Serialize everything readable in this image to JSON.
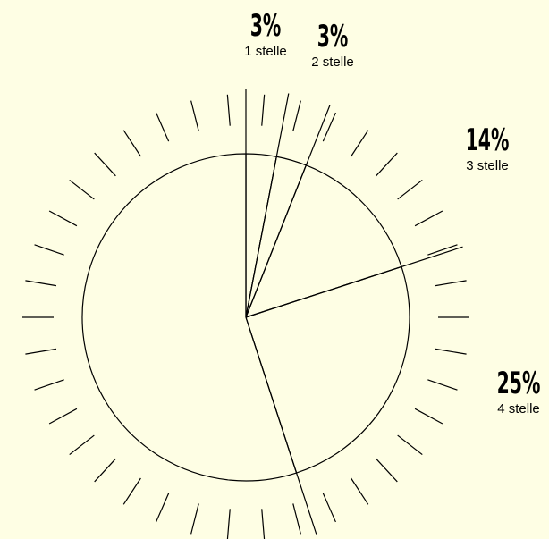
{
  "chart_data": {
    "type": "pie",
    "categories": [
      "1 stelle",
      "2 stelle",
      "3 stelle",
      "4 stelle",
      null
    ],
    "values": [
      3,
      3,
      14,
      25,
      55
    ],
    "value_labels": [
      "3%",
      "3%",
      "14%",
      "25%",
      null
    ],
    "color": "#fefee4"
  }
}
